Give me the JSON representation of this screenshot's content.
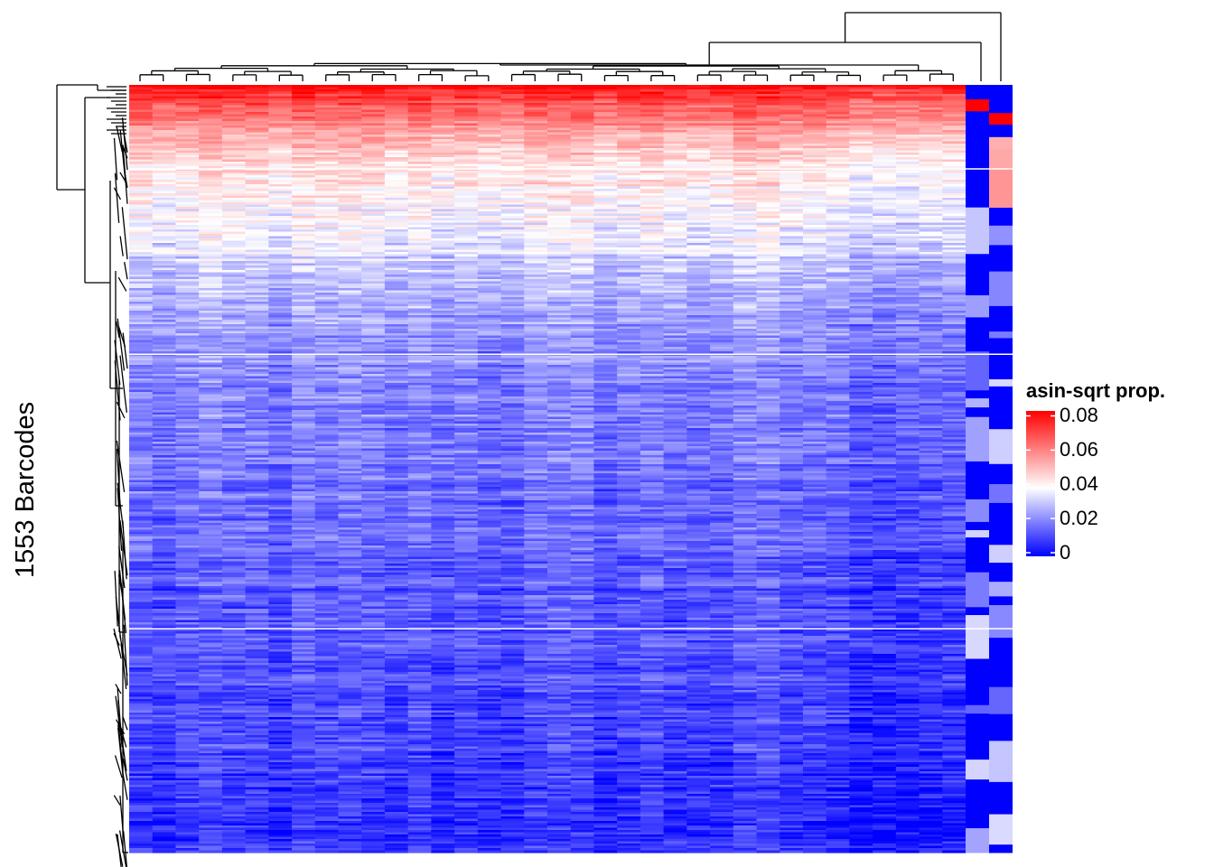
{
  "chart_data": {
    "type": "heatmap",
    "title": "",
    "ylabel": "1553 Barcodes",
    "xlabel": "",
    "n_rows": 1553,
    "n_sample_columns": 36,
    "n_annotation_columns": 2,
    "row_dendrogram": true,
    "column_dendrogram": true,
    "legend": {
      "title": "asin-sqrt prop.",
      "placement": "right",
      "ticks": [
        "0.08",
        "0.06",
        "0.04",
        "0.02",
        "0"
      ],
      "tick_values": [
        0.08,
        0.06,
        0.04,
        0.02,
        0
      ],
      "range": [
        0,
        0.085
      ],
      "colors": {
        "low": "#0000ff",
        "mid": "#ffffff",
        "high": "#ff0000"
      },
      "midpoint": 0.04
    },
    "row_groups": [
      {
        "name": "",
        "rows": 170,
        "top_value": 0.085,
        "bottom_value": 0.042
      },
      {
        "name": "",
        "rows": 375,
        "top_value": 0.045,
        "bottom_value": 0.02
      },
      {
        "name": "",
        "rows": 555,
        "top_value": 0.022,
        "bottom_value": 0.012
      },
      {
        "name": "",
        "rows": 453,
        "top_value": 0.014,
        "bottom_value": 0.006
      }
    ]
  }
}
